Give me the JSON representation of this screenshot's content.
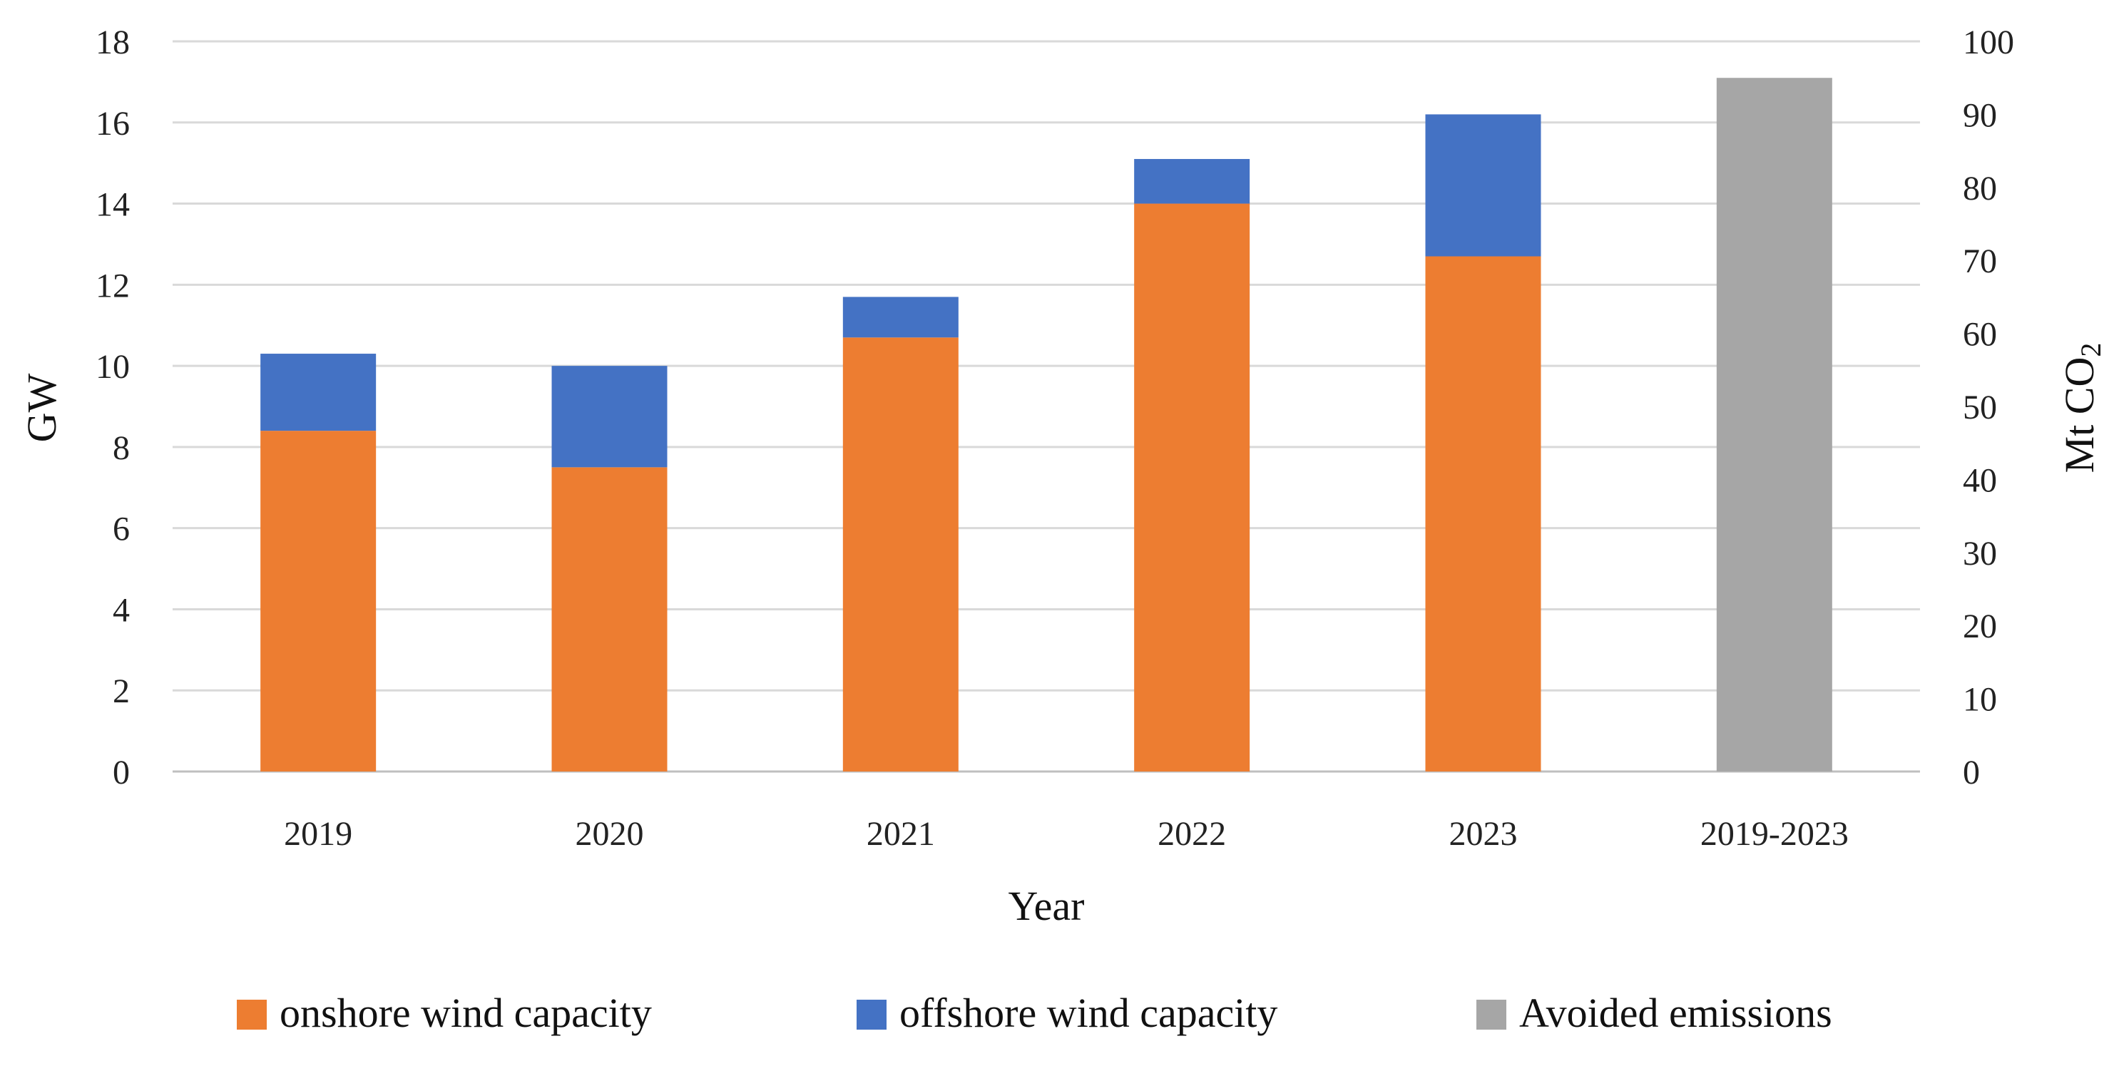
{
  "chart_data": {
    "type": "bar",
    "stacked": true,
    "categories": [
      "2019",
      "2020",
      "2021",
      "2022",
      "2023",
      "2019-2023"
    ],
    "series": [
      {
        "name": "onshore wind capacity",
        "axis": "left",
        "color": "#ED7D31",
        "values": [
          8.4,
          7.5,
          10.7,
          14.0,
          12.7,
          null
        ]
      },
      {
        "name": "offshore wind capacity",
        "axis": "left",
        "color": "#4472C4",
        "values": [
          1.9,
          2.5,
          1.0,
          1.1,
          3.5,
          null
        ]
      },
      {
        "name": "Avoided emissions",
        "axis": "right",
        "color": "#A6A6A6",
        "values": [
          null,
          null,
          null,
          null,
          null,
          95
        ]
      }
    ],
    "xlabel": "Year",
    "ylabel": "GW",
    "ylabel_right": "Mt CO",
    "ylabel_right_subscript": "2",
    "ylim": [
      0,
      18
    ],
    "ylim_right": [
      0,
      100
    ],
    "yticks": [
      "0",
      "2",
      "4",
      "6",
      "8",
      "10",
      "12",
      "14",
      "16",
      "18"
    ],
    "yticks_right": [
      "0",
      "10",
      "20",
      "30",
      "40",
      "50",
      "60",
      "70",
      "80",
      "90",
      "100"
    ],
    "grid": true,
    "legend_position": "bottom"
  }
}
